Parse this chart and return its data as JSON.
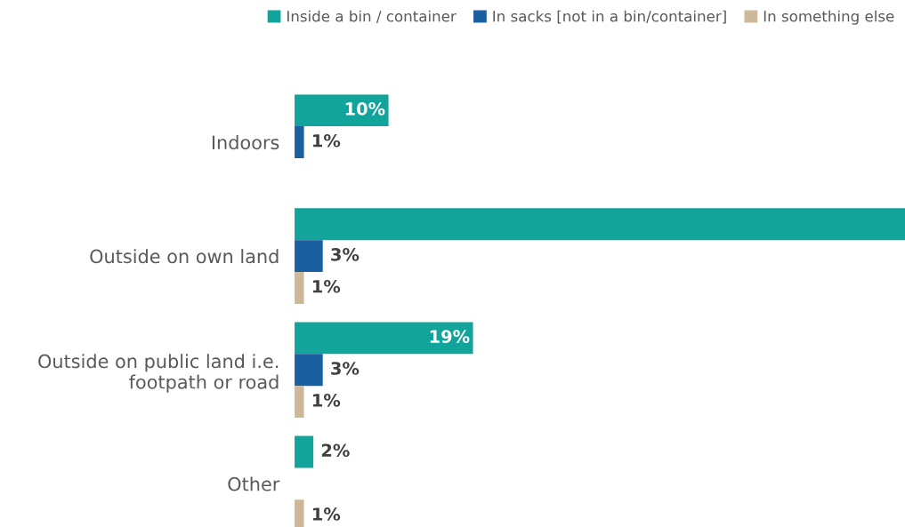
{
  "chart_data": {
    "type": "bar",
    "orientation": "horizontal",
    "categories": [
      "Indoors",
      "Outside on own land",
      "Outside on public land i.e.\nfootpath or road",
      "Other"
    ],
    "series": [
      {
        "name": "Inside a bin / container",
        "color": "#12a39a",
        "values": [
          10,
          65,
          19,
          2
        ],
        "value_labels": [
          "10%",
          null,
          "19%",
          "2%"
        ]
      },
      {
        "name": "In sacks [not in a bin/container]",
        "color": "#1a5fa0",
        "values": [
          1,
          3,
          3,
          null
        ],
        "value_labels": [
          "1%",
          "3%",
          "3%",
          null
        ]
      },
      {
        "name": "In something else",
        "color": "#cdb99a",
        "values": [
          null,
          1,
          1,
          1
        ],
        "value_labels": [
          null,
          "1%",
          "1%",
          "1%"
        ]
      }
    ],
    "legend": "top right"
  }
}
